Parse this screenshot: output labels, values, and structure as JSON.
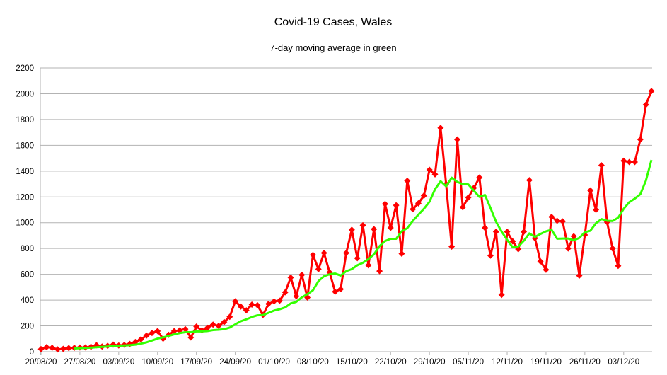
{
  "chart_data": {
    "type": "line",
    "title": "Covid-19 Cases, Wales",
    "subtitle": "7-day moving average in green",
    "xlabel": "",
    "ylabel": "",
    "ylim": [
      0,
      2200
    ],
    "yticks": [
      0,
      200,
      400,
      600,
      800,
      1000,
      1200,
      1400,
      1600,
      1800,
      2000,
      2200
    ],
    "xticks": [
      "20/08/20",
      "27/08/20",
      "03/09/20",
      "10/09/20",
      "17/09/20",
      "24/09/20",
      "01/10/20",
      "08/10/20",
      "15/10/20",
      "22/10/20",
      "29/10/20",
      "05/11/20",
      "12/11/20",
      "19/11/20",
      "26/11/20",
      "03/12/20"
    ],
    "x_start": "20/08/20",
    "grid": true,
    "legend": "none",
    "colors": {
      "daily": "#ff0000",
      "average": "#33ff00",
      "grid": "#b3b3b3"
    },
    "series": [
      {
        "role": "daily",
        "values": [
          20,
          35,
          30,
          18,
          22,
          28,
          30,
          32,
          33,
          38,
          50,
          40,
          45,
          55,
          48,
          52,
          60,
          75,
          95,
          125,
          145,
          160,
          100,
          130,
          160,
          165,
          175,
          110,
          195,
          165,
          185,
          210,
          200,
          230,
          270,
          390,
          350,
          320,
          365,
          360,
          285,
          370,
          390,
          395,
          460,
          575,
          430,
          595,
          420,
          750,
          640,
          765,
          615,
          465,
          485,
          765,
          945,
          725,
          980,
          670,
          950,
          625,
          1145,
          960,
          1135,
          760,
          1325,
          1105,
          1150,
          1210,
          1410,
          1375,
          1735,
          1300,
          815,
          1645,
          1120,
          1195,
          1270,
          1350,
          960,
          745,
          930,
          440,
          930,
          855,
          795,
          930,
          1330,
          880,
          700,
          635,
          1045,
          1015,
          1010,
          800,
          895,
          590,
          905,
          1250,
          1100,
          1445,
          1005,
          800,
          665,
          1480,
          1470,
          1470,
          1645,
          1915,
          2020
        ]
      },
      {
        "role": "average",
        "values": [
          null,
          null,
          null,
          null,
          null,
          null,
          25,
          27,
          29,
          31,
          34,
          37,
          40,
          44,
          46,
          48,
          50,
          54,
          62,
          72,
          86,
          101,
          111,
          122,
          134,
          144,
          151,
          151,
          157,
          157,
          160,
          167,
          170,
          174,
          187,
          212,
          236,
          251,
          269,
          282,
          284,
          301,
          319,
          329,
          343,
          374,
          386,
          421,
          446,
          476,
          547,
          585,
          600,
          606,
          590,
          624,
          640,
          670,
          689,
          718,
          755,
          818,
          858,
          875,
          875,
          934,
          958,
          1014,
          1062,
          1108,
          1162,
          1259,
          1322,
          1282,
          1349,
          1317,
          1299,
          1297,
          1248,
          1200,
          1215,
          1114,
          1007,
          931,
          867,
          809,
          815,
          860,
          917,
          890,
          913,
          933,
          945,
          876,
          877,
          877,
          864,
          882,
          926,
          938,
          996,
          1028,
          1015,
          1013,
          1039,
          1108,
          1159,
          1187,
          1221,
          1326,
          1486
        ]
      }
    ]
  }
}
